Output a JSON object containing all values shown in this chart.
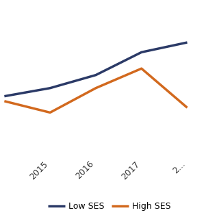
{
  "years": [
    2014,
    2015,
    2016,
    2017,
    2018
  ],
  "low_ses": [
    6.5,
    7.0,
    7.8,
    9.2,
    9.8
  ],
  "high_ses": [
    6.2,
    5.5,
    7.0,
    8.2,
    5.8
  ],
  "low_ses_color": "#2B3A67",
  "high_ses_color": "#D2691E",
  "low_ses_label": "Low SES",
  "high_ses_label": "High SES",
  "line_width": 2.5,
  "background_color": "#ffffff",
  "grid_color": "#d0d0d0",
  "xlim": [
    2014.0,
    2018.6
  ],
  "ylim": [
    3.0,
    12.0
  ],
  "xtick_positions": [
    2015,
    2016,
    2017,
    2018
  ],
  "xtick_labels": [
    "2015",
    "2016",
    "2017",
    "2..."
  ]
}
